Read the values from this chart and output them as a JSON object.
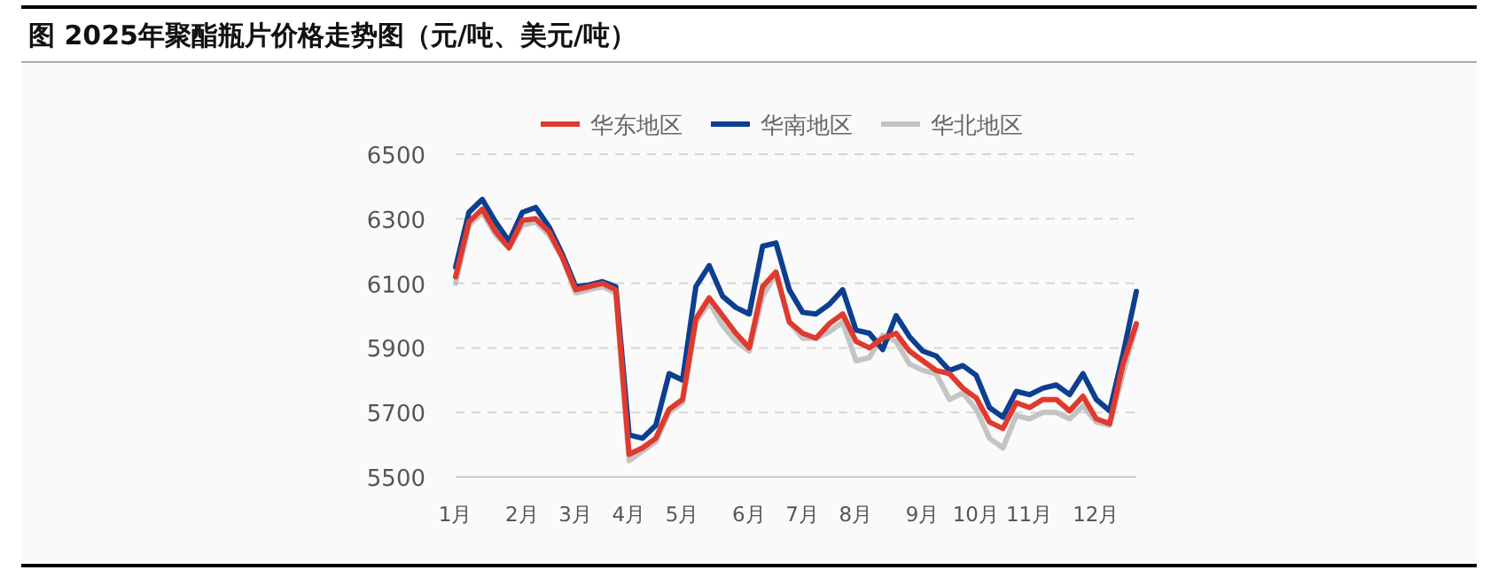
{
  "chart_data": {
    "type": "line",
    "title": "图 2025年聚酯瓶片价格走势图（元/吨、美元/吨）",
    "categories": [
      "1月",
      null,
      null,
      null,
      null,
      "2月",
      null,
      null,
      null,
      "3月",
      null,
      null,
      null,
      "4月",
      null,
      null,
      null,
      "5月",
      null,
      null,
      null,
      null,
      "6月",
      null,
      null,
      null,
      "7月",
      null,
      null,
      null,
      "8月",
      null,
      null,
      null,
      null,
      "9月",
      null,
      null,
      null,
      "10月",
      null,
      null,
      null,
      "11月",
      null,
      null,
      null,
      null,
      "12月",
      null,
      null,
      null
    ],
    "series": [
      {
        "name": "华东地区",
        "color": "#e03a2f",
        "values": [
          6120,
          6290,
          6330,
          6260,
          6210,
          6295,
          6300,
          6260,
          6180,
          6080,
          6090,
          6100,
          6080,
          5570,
          5590,
          5620,
          5710,
          5740,
          5990,
          6055,
          6000,
          5945,
          5900,
          6090,
          6135,
          5980,
          5945,
          5930,
          5975,
          6005,
          5920,
          5900,
          5930,
          5945,
          5890,
          5860,
          5830,
          5820,
          5775,
          5745,
          5670,
          5650,
          5730,
          5715,
          5740,
          5740,
          5705,
          5750,
          5680,
          5665,
          5850,
          5975
        ]
      },
      {
        "name": "华南地区",
        "color": "#0d3f8f",
        "values": [
          6150,
          6320,
          6360,
          6290,
          6230,
          6320,
          6335,
          6275,
          6190,
          6090,
          6095,
          6105,
          6090,
          5630,
          5620,
          5660,
          5820,
          5800,
          6090,
          6155,
          6060,
          6025,
          6005,
          6215,
          6225,
          6080,
          6010,
          6005,
          6035,
          6080,
          5955,
          5945,
          5895,
          6000,
          5935,
          5890,
          5875,
          5830,
          5845,
          5815,
          5715,
          5685,
          5765,
          5755,
          5775,
          5785,
          5755,
          5820,
          5740,
          5705,
          5880,
          6075
        ]
      },
      {
        "name": "华北地区",
        "color": "#c4c4c4",
        "values": [
          6100,
          6280,
          6320,
          6250,
          6210,
          6280,
          6290,
          6250,
          6180,
          6070,
          6080,
          6090,
          6070,
          5550,
          5580,
          5610,
          5700,
          5730,
          5980,
          6040,
          5970,
          5920,
          5890,
          6060,
          6130,
          5980,
          5930,
          5930,
          5950,
          5980,
          5860,
          5870,
          5940,
          5920,
          5850,
          5830,
          5820,
          5740,
          5760,
          5710,
          5620,
          5590,
          5690,
          5680,
          5700,
          5700,
          5680,
          5720,
          5670,
          5660,
          5820,
          5970
        ]
      }
    ],
    "ylim": [
      5500,
      6500
    ],
    "yticks": [
      5500,
      5700,
      5900,
      6100,
      6300,
      6500
    ],
    "grid": "y",
    "legend": "top",
    "marker": "none",
    "line_style": "solid"
  }
}
